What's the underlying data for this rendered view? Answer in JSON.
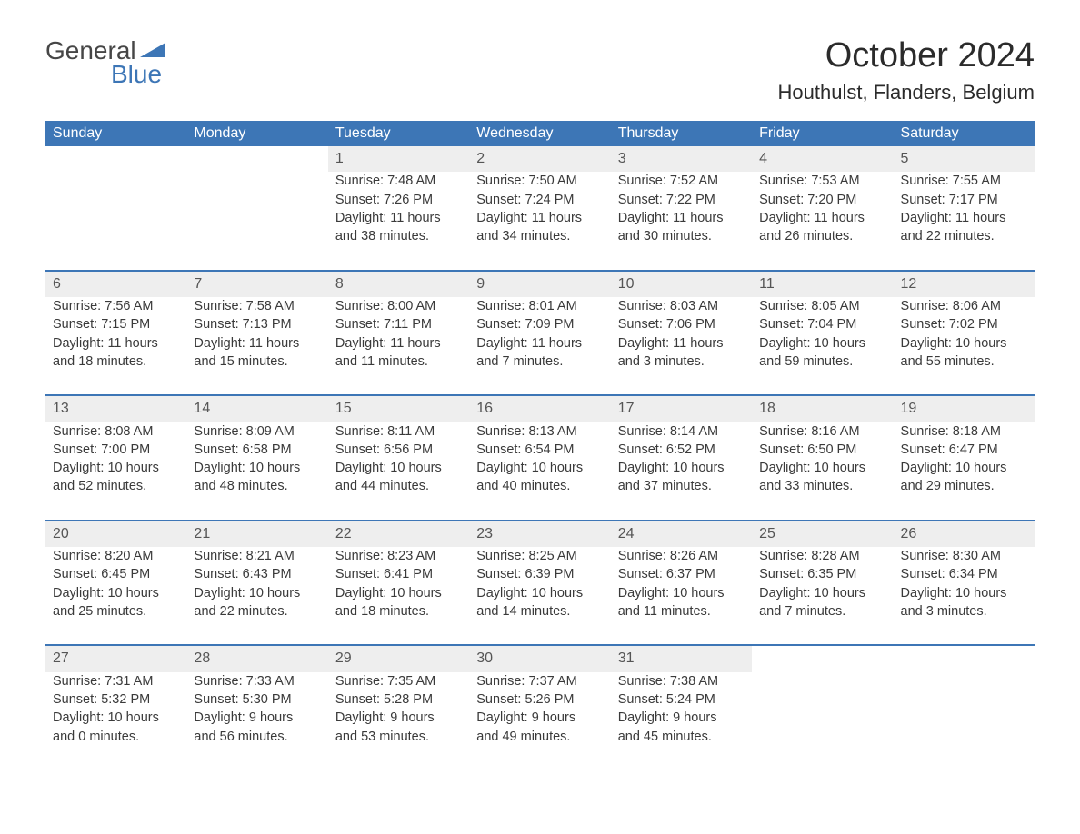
{
  "logo": {
    "word1": "General",
    "word2": "Blue",
    "color_accent": "#3d76b6"
  },
  "title": "October 2024",
  "location": "Houthulst, Flanders, Belgium",
  "day_headers": [
    "Sunday",
    "Monday",
    "Tuesday",
    "Wednesday",
    "Thursday",
    "Friday",
    "Saturday"
  ],
  "colors": {
    "header_bg": "#3d76b6",
    "header_text": "#ffffff",
    "daynum_bg": "#eeeeee",
    "row_divider": "#3d76b6",
    "text": "#3a3a3a",
    "page_bg": "#ffffff"
  },
  "typography": {
    "title_fontsize": 38,
    "location_fontsize": 22,
    "header_fontsize": 16,
    "body_fontsize": 14.5
  },
  "weeks": [
    [
      null,
      null,
      {
        "n": "1",
        "sunrise": "7:48 AM",
        "sunset": "7:26 PM",
        "daylight1": "Daylight: 11 hours",
        "daylight2": "and 38 minutes."
      },
      {
        "n": "2",
        "sunrise": "7:50 AM",
        "sunset": "7:24 PM",
        "daylight1": "Daylight: 11 hours",
        "daylight2": "and 34 minutes."
      },
      {
        "n": "3",
        "sunrise": "7:52 AM",
        "sunset": "7:22 PM",
        "daylight1": "Daylight: 11 hours",
        "daylight2": "and 30 minutes."
      },
      {
        "n": "4",
        "sunrise": "7:53 AM",
        "sunset": "7:20 PM",
        "daylight1": "Daylight: 11 hours",
        "daylight2": "and 26 minutes."
      },
      {
        "n": "5",
        "sunrise": "7:55 AM",
        "sunset": "7:17 PM",
        "daylight1": "Daylight: 11 hours",
        "daylight2": "and 22 minutes."
      }
    ],
    [
      {
        "n": "6",
        "sunrise": "7:56 AM",
        "sunset": "7:15 PM",
        "daylight1": "Daylight: 11 hours",
        "daylight2": "and 18 minutes."
      },
      {
        "n": "7",
        "sunrise": "7:58 AM",
        "sunset": "7:13 PM",
        "daylight1": "Daylight: 11 hours",
        "daylight2": "and 15 minutes."
      },
      {
        "n": "8",
        "sunrise": "8:00 AM",
        "sunset": "7:11 PM",
        "daylight1": "Daylight: 11 hours",
        "daylight2": "and 11 minutes."
      },
      {
        "n": "9",
        "sunrise": "8:01 AM",
        "sunset": "7:09 PM",
        "daylight1": "Daylight: 11 hours",
        "daylight2": "and 7 minutes."
      },
      {
        "n": "10",
        "sunrise": "8:03 AM",
        "sunset": "7:06 PM",
        "daylight1": "Daylight: 11 hours",
        "daylight2": "and 3 minutes."
      },
      {
        "n": "11",
        "sunrise": "8:05 AM",
        "sunset": "7:04 PM",
        "daylight1": "Daylight: 10 hours",
        "daylight2": "and 59 minutes."
      },
      {
        "n": "12",
        "sunrise": "8:06 AM",
        "sunset": "7:02 PM",
        "daylight1": "Daylight: 10 hours",
        "daylight2": "and 55 minutes."
      }
    ],
    [
      {
        "n": "13",
        "sunrise": "8:08 AM",
        "sunset": "7:00 PM",
        "daylight1": "Daylight: 10 hours",
        "daylight2": "and 52 minutes."
      },
      {
        "n": "14",
        "sunrise": "8:09 AM",
        "sunset": "6:58 PM",
        "daylight1": "Daylight: 10 hours",
        "daylight2": "and 48 minutes."
      },
      {
        "n": "15",
        "sunrise": "8:11 AM",
        "sunset": "6:56 PM",
        "daylight1": "Daylight: 10 hours",
        "daylight2": "and 44 minutes."
      },
      {
        "n": "16",
        "sunrise": "8:13 AM",
        "sunset": "6:54 PM",
        "daylight1": "Daylight: 10 hours",
        "daylight2": "and 40 minutes."
      },
      {
        "n": "17",
        "sunrise": "8:14 AM",
        "sunset": "6:52 PM",
        "daylight1": "Daylight: 10 hours",
        "daylight2": "and 37 minutes."
      },
      {
        "n": "18",
        "sunrise": "8:16 AM",
        "sunset": "6:50 PM",
        "daylight1": "Daylight: 10 hours",
        "daylight2": "and 33 minutes."
      },
      {
        "n": "19",
        "sunrise": "8:18 AM",
        "sunset": "6:47 PM",
        "daylight1": "Daylight: 10 hours",
        "daylight2": "and 29 minutes."
      }
    ],
    [
      {
        "n": "20",
        "sunrise": "8:20 AM",
        "sunset": "6:45 PM",
        "daylight1": "Daylight: 10 hours",
        "daylight2": "and 25 minutes."
      },
      {
        "n": "21",
        "sunrise": "8:21 AM",
        "sunset": "6:43 PM",
        "daylight1": "Daylight: 10 hours",
        "daylight2": "and 22 minutes."
      },
      {
        "n": "22",
        "sunrise": "8:23 AM",
        "sunset": "6:41 PM",
        "daylight1": "Daylight: 10 hours",
        "daylight2": "and 18 minutes."
      },
      {
        "n": "23",
        "sunrise": "8:25 AM",
        "sunset": "6:39 PM",
        "daylight1": "Daylight: 10 hours",
        "daylight2": "and 14 minutes."
      },
      {
        "n": "24",
        "sunrise": "8:26 AM",
        "sunset": "6:37 PM",
        "daylight1": "Daylight: 10 hours",
        "daylight2": "and 11 minutes."
      },
      {
        "n": "25",
        "sunrise": "8:28 AM",
        "sunset": "6:35 PM",
        "daylight1": "Daylight: 10 hours",
        "daylight2": "and 7 minutes."
      },
      {
        "n": "26",
        "sunrise": "8:30 AM",
        "sunset": "6:34 PM",
        "daylight1": "Daylight: 10 hours",
        "daylight2": "and 3 minutes."
      }
    ],
    [
      {
        "n": "27",
        "sunrise": "7:31 AM",
        "sunset": "5:32 PM",
        "daylight1": "Daylight: 10 hours",
        "daylight2": "and 0 minutes."
      },
      {
        "n": "28",
        "sunrise": "7:33 AM",
        "sunset": "5:30 PM",
        "daylight1": "Daylight: 9 hours",
        "daylight2": "and 56 minutes."
      },
      {
        "n": "29",
        "sunrise": "7:35 AM",
        "sunset": "5:28 PM",
        "daylight1": "Daylight: 9 hours",
        "daylight2": "and 53 minutes."
      },
      {
        "n": "30",
        "sunrise": "7:37 AM",
        "sunset": "5:26 PM",
        "daylight1": "Daylight: 9 hours",
        "daylight2": "and 49 minutes."
      },
      {
        "n": "31",
        "sunrise": "7:38 AM",
        "sunset": "5:24 PM",
        "daylight1": "Daylight: 9 hours",
        "daylight2": "and 45 minutes."
      },
      null,
      null
    ]
  ],
  "labels": {
    "sunrise_prefix": "Sunrise: ",
    "sunset_prefix": "Sunset: "
  }
}
